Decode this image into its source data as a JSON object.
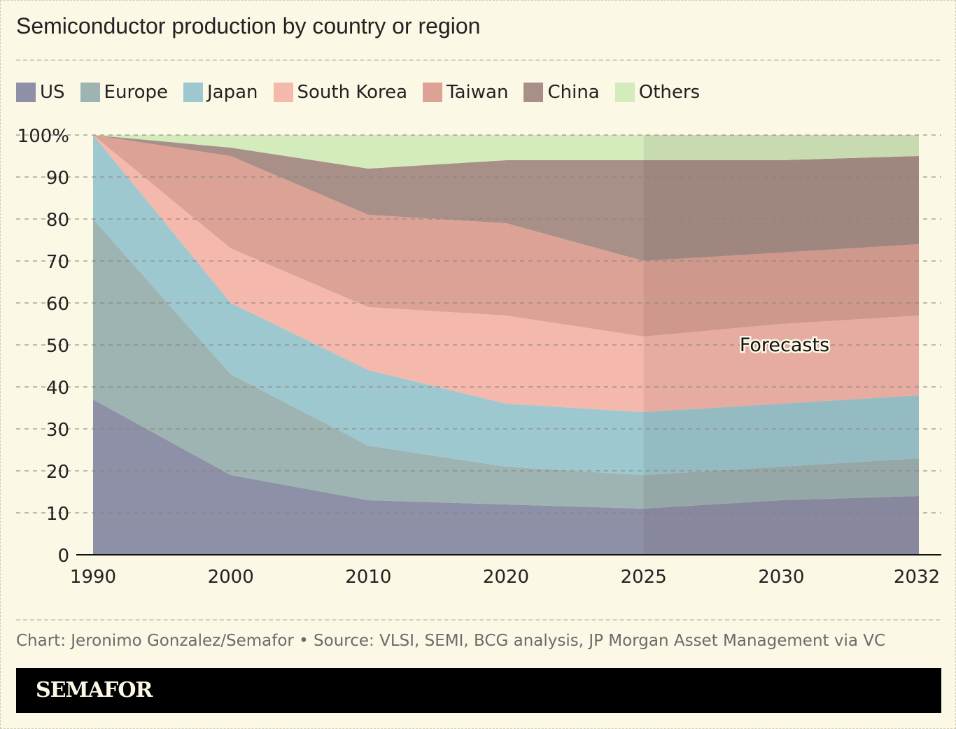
{
  "title": "Semiconductor production by country or region",
  "credit": "Chart: Jeronimo Gonzalez/Semafor • Source: VLSI, SEMI, BCG analysis, JP Morgan Asset Management via VC",
  "brand": "SEMAFOR",
  "chart_data": {
    "type": "area",
    "stacked": true,
    "categories": [
      "1990",
      "2000",
      "2010",
      "2020",
      "2025",
      "2030",
      "2032"
    ],
    "ylim": [
      0,
      100
    ],
    "yticks": [
      "0",
      "10",
      "20",
      "30",
      "40",
      "50",
      "60",
      "70",
      "80",
      "90",
      "100%"
    ],
    "grid": true,
    "legend": "top",
    "annotation": "Forecasts",
    "forecast_from": "2025",
    "series": [
      {
        "name": "US",
        "color": "#8e90a8",
        "values": [
          37,
          19,
          13,
          12,
          11,
          13,
          14
        ]
      },
      {
        "name": "Europe",
        "color": "#9db4b2",
        "values": [
          43,
          24,
          13,
          9,
          8,
          8,
          9
        ]
      },
      {
        "name": "Japan",
        "color": "#9dc8d0",
        "values": [
          20,
          17,
          18,
          15,
          15,
          15,
          15
        ]
      },
      {
        "name": "South Korea",
        "color": "#f5b8ac",
        "values": [
          0,
          13,
          15,
          21,
          18,
          19,
          19
        ]
      },
      {
        "name": "Taiwan",
        "color": "#dca295",
        "values": [
          0,
          22,
          22,
          22,
          18,
          17,
          17
        ]
      },
      {
        "name": "China",
        "color": "#a89088",
        "values": [
          0,
          2,
          11,
          15,
          24,
          22,
          21
        ]
      },
      {
        "name": "Others",
        "color": "#d4ebbc",
        "values": [
          0,
          3,
          8,
          6,
          6,
          6,
          5
        ]
      }
    ]
  }
}
